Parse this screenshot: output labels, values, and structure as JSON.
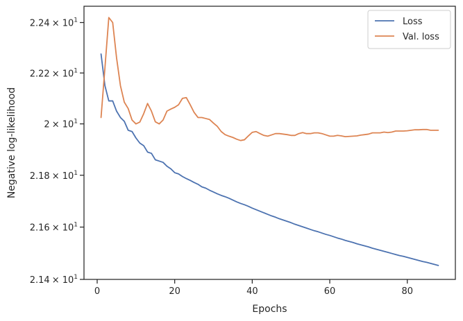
{
  "chart_data": {
    "type": "line",
    "xlabel": "Epochs",
    "ylabel": "Negative log-likelihood",
    "xlim": [
      -3.4,
      92.4
    ],
    "ylim": [
      21.4,
      22.465
    ],
    "y_scale": "log",
    "grid": false,
    "legend_position": "top-right",
    "x_ticks": [
      {
        "value": 0,
        "label": "0"
      },
      {
        "value": 20,
        "label": "20"
      },
      {
        "value": 40,
        "label": "40"
      },
      {
        "value": 60,
        "label": "60"
      },
      {
        "value": 80,
        "label": "80"
      }
    ],
    "y_ticks": [
      {
        "value": 21.4,
        "mantissa": "2.14",
        "base": "× 10",
        "exp": "1"
      },
      {
        "value": 21.6,
        "mantissa": "2.16",
        "base": "× 10",
        "exp": "1"
      },
      {
        "value": 21.8,
        "mantissa": "2.18",
        "base": "× 10",
        "exp": "1"
      },
      {
        "value": 22.0,
        "mantissa": "2",
        "base": "× 10",
        "exp": "1"
      },
      {
        "value": 22.2,
        "mantissa": "2.22",
        "base": "× 10",
        "exp": "1"
      },
      {
        "value": 22.4,
        "mantissa": "2.24",
        "base": "× 10",
        "exp": "1"
      }
    ],
    "series": [
      {
        "name": "Loss",
        "color": "#4c72b0",
        "x": [
          1,
          2,
          3,
          4,
          5,
          6,
          7,
          8,
          9,
          10,
          11,
          12,
          13,
          14,
          15,
          16,
          17,
          18,
          19,
          20,
          21,
          22,
          23,
          24,
          25,
          26,
          27,
          28,
          29,
          30,
          31,
          32,
          33,
          34,
          35,
          36,
          37,
          38,
          39,
          40,
          41,
          42,
          43,
          44,
          45,
          46,
          47,
          48,
          49,
          50,
          51,
          52,
          53,
          54,
          55,
          56,
          57,
          58,
          59,
          60,
          61,
          62,
          63,
          64,
          65,
          66,
          67,
          68,
          69,
          70,
          71,
          72,
          73,
          74,
          75,
          76,
          77,
          78,
          79,
          80,
          81,
          82,
          83,
          84,
          85,
          86,
          87,
          88
        ],
        "y": [
          22.275,
          22.15,
          22.09,
          22.09,
          22.05,
          22.025,
          22.01,
          21.975,
          21.97,
          21.945,
          21.925,
          21.915,
          21.89,
          21.885,
          21.86,
          21.855,
          21.85,
          21.835,
          21.825,
          21.81,
          21.805,
          21.795,
          21.787,
          21.78,
          21.772,
          21.765,
          21.755,
          21.75,
          21.742,
          21.735,
          21.728,
          21.722,
          21.717,
          21.711,
          21.704,
          21.697,
          21.691,
          21.686,
          21.68,
          21.673,
          21.667,
          21.661,
          21.655,
          21.649,
          21.643,
          21.638,
          21.632,
          21.627,
          21.622,
          21.617,
          21.611,
          21.606,
          21.601,
          21.596,
          21.591,
          21.586,
          21.582,
          21.577,
          21.572,
          21.568,
          21.563,
          21.558,
          21.554,
          21.549,
          21.545,
          21.541,
          21.536,
          21.532,
          21.528,
          21.524,
          21.519,
          21.515,
          21.511,
          21.507,
          21.503,
          21.499,
          21.495,
          21.491,
          21.488,
          21.484,
          21.48,
          21.476,
          21.472,
          21.468,
          21.465,
          21.461,
          21.457,
          21.453
        ]
      },
      {
        "name": "Val. loss",
        "color": "#dd8452",
        "x": [
          1,
          2,
          3,
          4,
          5,
          6,
          7,
          8,
          9,
          10,
          11,
          12,
          13,
          14,
          15,
          16,
          17,
          18,
          19,
          20,
          21,
          22,
          23,
          24,
          25,
          26,
          27,
          28,
          29,
          30,
          31,
          32,
          33,
          34,
          35,
          36,
          37,
          38,
          39,
          40,
          41,
          42,
          43,
          44,
          45,
          46,
          47,
          48,
          49,
          50,
          51,
          52,
          53,
          54,
          55,
          56,
          57,
          58,
          59,
          60,
          61,
          62,
          63,
          64,
          65,
          66,
          67,
          68,
          69,
          70,
          71,
          72,
          73,
          74,
          75,
          76,
          77,
          78,
          79,
          80,
          81,
          82,
          83,
          84,
          85,
          86,
          87,
          88
        ],
        "y": [
          22.025,
          22.22,
          22.42,
          22.4,
          22.26,
          22.15,
          22.085,
          22.06,
          22.015,
          22.0,
          22.007,
          22.04,
          22.08,
          22.05,
          22.008,
          22.0,
          22.015,
          22.05,
          22.058,
          22.065,
          22.075,
          22.1,
          22.103,
          22.075,
          22.045,
          22.025,
          22.025,
          22.021,
          22.017,
          22.003,
          21.99,
          21.97,
          21.958,
          21.952,
          21.947,
          21.94,
          21.935,
          21.938,
          21.953,
          21.967,
          21.97,
          21.962,
          21.955,
          21.952,
          21.957,
          21.962,
          21.962,
          21.96,
          21.958,
          21.955,
          21.955,
          21.962,
          21.966,
          21.962,
          21.962,
          21.965,
          21.965,
          21.962,
          21.957,
          21.952,
          21.952,
          21.955,
          21.953,
          21.95,
          21.951,
          21.952,
          21.953,
          21.956,
          21.958,
          21.96,
          21.965,
          21.965,
          21.965,
          21.968,
          21.966,
          21.968,
          21.972,
          21.972,
          21.972,
          21.973,
          21.975,
          21.977,
          21.977,
          21.978,
          21.978,
          21.975,
          21.975,
          21.975
        ]
      }
    ]
  }
}
